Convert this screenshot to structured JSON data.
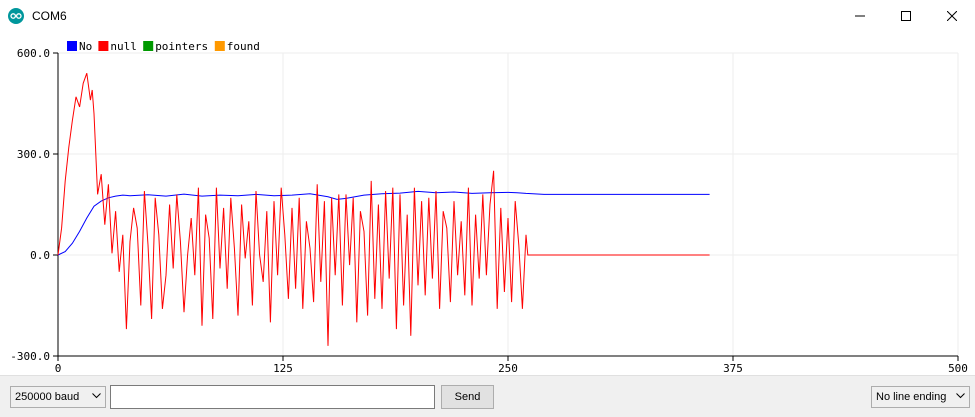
{
  "window": {
    "title": "COM6",
    "app_icon": "arduino-infinity-icon",
    "controls": [
      "minimize-icon",
      "maximize-icon",
      "close-icon"
    ]
  },
  "chart_data": {
    "type": "line",
    "title": "",
    "xlabel": "",
    "ylabel": "",
    "xlim": [
      0,
      500
    ],
    "ylim": [
      -300,
      600
    ],
    "x_ticks": [
      "0",
      "125",
      "250",
      "375",
      "500"
    ],
    "y_ticks": [
      "600.0",
      "300.0",
      "0.0",
      "-300.0"
    ],
    "grid": true,
    "legend_position": "top-left",
    "legend": [
      {
        "name": "No",
        "color": "#0000ff"
      },
      {
        "name": "null",
        "color": "#ff0000"
      },
      {
        "name": "pointers",
        "color": "#009900"
      },
      {
        "name": "found",
        "color": "#ff9900"
      }
    ],
    "series": [
      {
        "name": "No",
        "color": "#0000ff",
        "x": [
          0,
          4,
          8,
          12,
          16,
          20,
          24,
          28,
          32,
          36,
          40,
          50,
          60,
          70,
          80,
          90,
          100,
          110,
          120,
          130,
          140,
          150,
          155,
          160,
          170,
          180,
          190,
          200,
          210,
          220,
          230,
          240,
          250,
          255,
          260,
          270,
          280,
          300,
          330,
          362
        ],
        "y": [
          0,
          10,
          35,
          70,
          110,
          145,
          160,
          170,
          175,
          178,
          176,
          179,
          175,
          181,
          175,
          178,
          176,
          180,
          176,
          178,
          182,
          173,
          165,
          168,
          178,
          182,
          184,
          189,
          185,
          187,
          183,
          185,
          186,
          185,
          183,
          180,
          180,
          180,
          180,
          180
        ]
      },
      {
        "name": "null",
        "color": "#ff0000",
        "x": [
          0,
          2,
          4,
          6,
          8,
          10,
          12,
          14,
          16,
          18,
          19,
          20,
          22,
          24,
          26,
          28,
          30,
          32,
          34,
          36,
          38,
          40,
          42,
          44,
          46,
          48,
          50,
          52,
          54,
          56,
          58,
          60,
          62,
          64,
          66,
          68,
          70,
          72,
          74,
          76,
          78,
          80,
          82,
          84,
          86,
          88,
          90,
          92,
          94,
          96,
          98,
          100,
          102,
          104,
          106,
          108,
          110,
          112,
          114,
          116,
          118,
          120,
          122,
          124,
          126,
          128,
          130,
          132,
          134,
          136,
          138,
          140,
          142,
          144,
          146,
          148,
          150,
          152,
          154,
          156,
          158,
          160,
          162,
          164,
          166,
          168,
          170,
          172,
          174,
          176,
          178,
          180,
          182,
          184,
          186,
          188,
          190,
          192,
          194,
          196,
          198,
          200,
          202,
          204,
          206,
          208,
          210,
          212,
          214,
          216,
          218,
          220,
          222,
          224,
          226,
          228,
          230,
          232,
          234,
          236,
          238,
          240,
          242,
          244,
          246,
          248,
          250,
          252,
          254,
          256,
          258,
          260,
          261,
          262,
          270,
          300,
          362
        ],
        "y": [
          0,
          80,
          220,
          320,
          400,
          470,
          440,
          510,
          540,
          460,
          490,
          420,
          180,
          240,
          90,
          210,
          5,
          130,
          -50,
          60,
          -220,
          40,
          140,
          80,
          -150,
          190,
          30,
          -190,
          170,
          60,
          -160,
          -60,
          150,
          -40,
          180,
          40,
          -170,
          0,
          110,
          -60,
          200,
          -210,
          120,
          50,
          -190,
          200,
          -40,
          140,
          -100,
          170,
          20,
          -180,
          150,
          -10,
          100,
          -150,
          190,
          0,
          -80,
          130,
          -200,
          160,
          -60,
          200,
          60,
          -130,
          140,
          -100,
          170,
          -160,
          100,
          20,
          -140,
          210,
          -80,
          160,
          -270,
          170,
          -60,
          180,
          -150,
          180,
          -30,
          170,
          -200,
          130,
          70,
          -180,
          220,
          -130,
          150,
          -160,
          190,
          -70,
          200,
          -220,
          180,
          -150,
          120,
          -240,
          200,
          -90,
          160,
          -120,
          170,
          -70,
          190,
          -160,
          130,
          80,
          -140,
          160,
          -60,
          100,
          -120,
          200,
          -150,
          120,
          -70,
          180,
          -60,
          150,
          250,
          -160,
          140,
          -110,
          110,
          -140,
          160,
          30,
          -160,
          60,
          0,
          0,
          0,
          0,
          0
        ]
      }
    ]
  },
  "bottom": {
    "baud_value": "250000 baud",
    "input_value": "",
    "send_label": "Send",
    "line_ending_value": "No line ending"
  }
}
